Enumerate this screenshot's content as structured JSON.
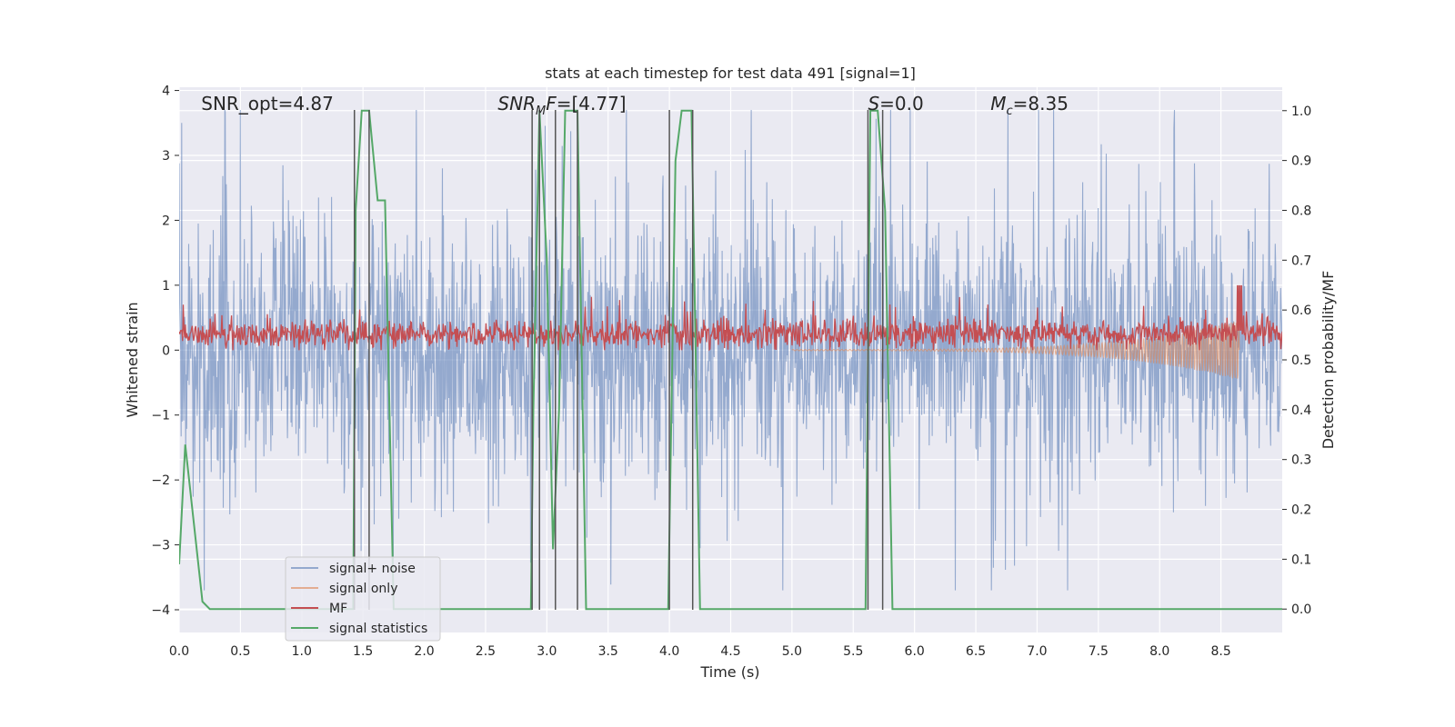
{
  "chart_data": {
    "type": "line",
    "title": "stats at each timestep for test data 491 [signal=1]",
    "xlabel": "Time (s)",
    "ylabel": "Whitened strain",
    "y2label": "Detection probability/MF",
    "xlim": [
      0.0,
      9.0
    ],
    "ylim": [
      -4.35,
      4.05
    ],
    "y2lim": [
      -0.047,
      1.047
    ],
    "xticks": [
      0.0,
      0.5,
      1.0,
      1.5,
      2.0,
      2.5,
      3.0,
      3.5,
      4.0,
      4.5,
      5.0,
      5.5,
      6.0,
      6.5,
      7.0,
      7.5,
      8.0,
      8.5
    ],
    "xtick_labels": [
      "0.0",
      "0.5",
      "1.0",
      "1.5",
      "2.0",
      "2.5",
      "3.0",
      "3.5",
      "4.0",
      "4.5",
      "5.0",
      "5.5",
      "6.0",
      "6.5",
      "7.0",
      "7.5",
      "8.0",
      "8.5"
    ],
    "yticks": [
      -4,
      -3,
      -2,
      -1,
      0,
      1,
      2,
      3,
      4
    ],
    "ytick_labels": [
      "−4",
      "−3",
      "−2",
      "−1",
      "0",
      "1",
      "2",
      "3",
      "4"
    ],
    "y2ticks": [
      0.0,
      0.1,
      0.2,
      0.3,
      0.4,
      0.5,
      0.6,
      0.7,
      0.8,
      0.9,
      1.0
    ],
    "y2tick_labels": [
      "0.0",
      "0.1",
      "0.2",
      "0.3",
      "0.4",
      "0.5",
      "0.6",
      "0.7",
      "0.8",
      "0.9",
      "1.0"
    ],
    "grid": true,
    "legend_position": "bottom-left",
    "annotations": [
      {
        "name": "snr-opt",
        "x": 0.18,
        "text_html": "SNR_opt=4.87"
      },
      {
        "name": "snr-mf",
        "x": 2.6,
        "text_html": "<tspan font-style='italic'>SNR</tspan><tspan font-style='italic' font-size='13' dy='5'>M</tspan><tspan font-style='italic' dy='-5'>F</tspan>=[4.77]"
      },
      {
        "name": "s-value",
        "x": 5.62,
        "text_html": "<tspan font-style='italic'>S</tspan>=0.0"
      },
      {
        "name": "mc-value",
        "x": 6.62,
        "text_html": "<tspan font-style='italic'>M</tspan><tspan font-style='italic' font-size='13' dy='5'>c</tspan><tspan dy='-5'>=8.35</tspan>"
      }
    ],
    "vlines": [
      1.43,
      1.55,
      2.88,
      2.94,
      3.07,
      3.25,
      4.0,
      4.19,
      5.62,
      5.74
    ],
    "vline_top": 3.7,
    "series": [
      {
        "name": "signal+ noise",
        "color": "#4c72b0",
        "opacity": 0.55,
        "kind": "noise",
        "axis": "left",
        "envelope": [
          1.6,
          1.3,
          2.4
        ]
      },
      {
        "name": "signal only",
        "color": "#dd8452",
        "opacity": 0.6,
        "kind": "chirp",
        "axis": "left",
        "t_start": 5.0,
        "t_end": 8.65,
        "amp_end": 0.45
      },
      {
        "name": "MF",
        "color": "#c44e52",
        "opacity": 1.0,
        "kind": "mf",
        "axis": "left",
        "baseline": 0.25,
        "spread": 0.18,
        "t_end": 9.0,
        "spike_t": 8.65,
        "spike_top": 1.0,
        "spike_bottom": 0.3
      },
      {
        "name": "signal statistics",
        "color": "#55a868",
        "opacity": 1.0,
        "kind": "line",
        "axis": "right",
        "x": [
          0.0,
          0.05,
          0.19,
          0.25,
          1.42,
          1.44,
          1.49,
          1.55,
          1.62,
          1.68,
          1.75,
          2.87,
          2.89,
          2.94,
          3.0,
          3.05,
          3.1,
          3.15,
          3.25,
          3.32,
          3.99,
          4.05,
          4.1,
          4.18,
          4.25,
          5.6,
          5.64,
          5.7,
          5.76,
          5.82,
          9.0
        ],
        "y": [
          0.09,
          0.33,
          0.015,
          0.0,
          0.0,
          0.8,
          1.0,
          1.0,
          0.82,
          0.82,
          0.0,
          0.0,
          0.4,
          1.0,
          0.7,
          0.12,
          0.4,
          1.0,
          1.0,
          0.0,
          0.0,
          0.9,
          1.0,
          1.0,
          0.0,
          0.0,
          1.0,
          1.0,
          0.8,
          0.0,
          0.0
        ]
      }
    ]
  }
}
